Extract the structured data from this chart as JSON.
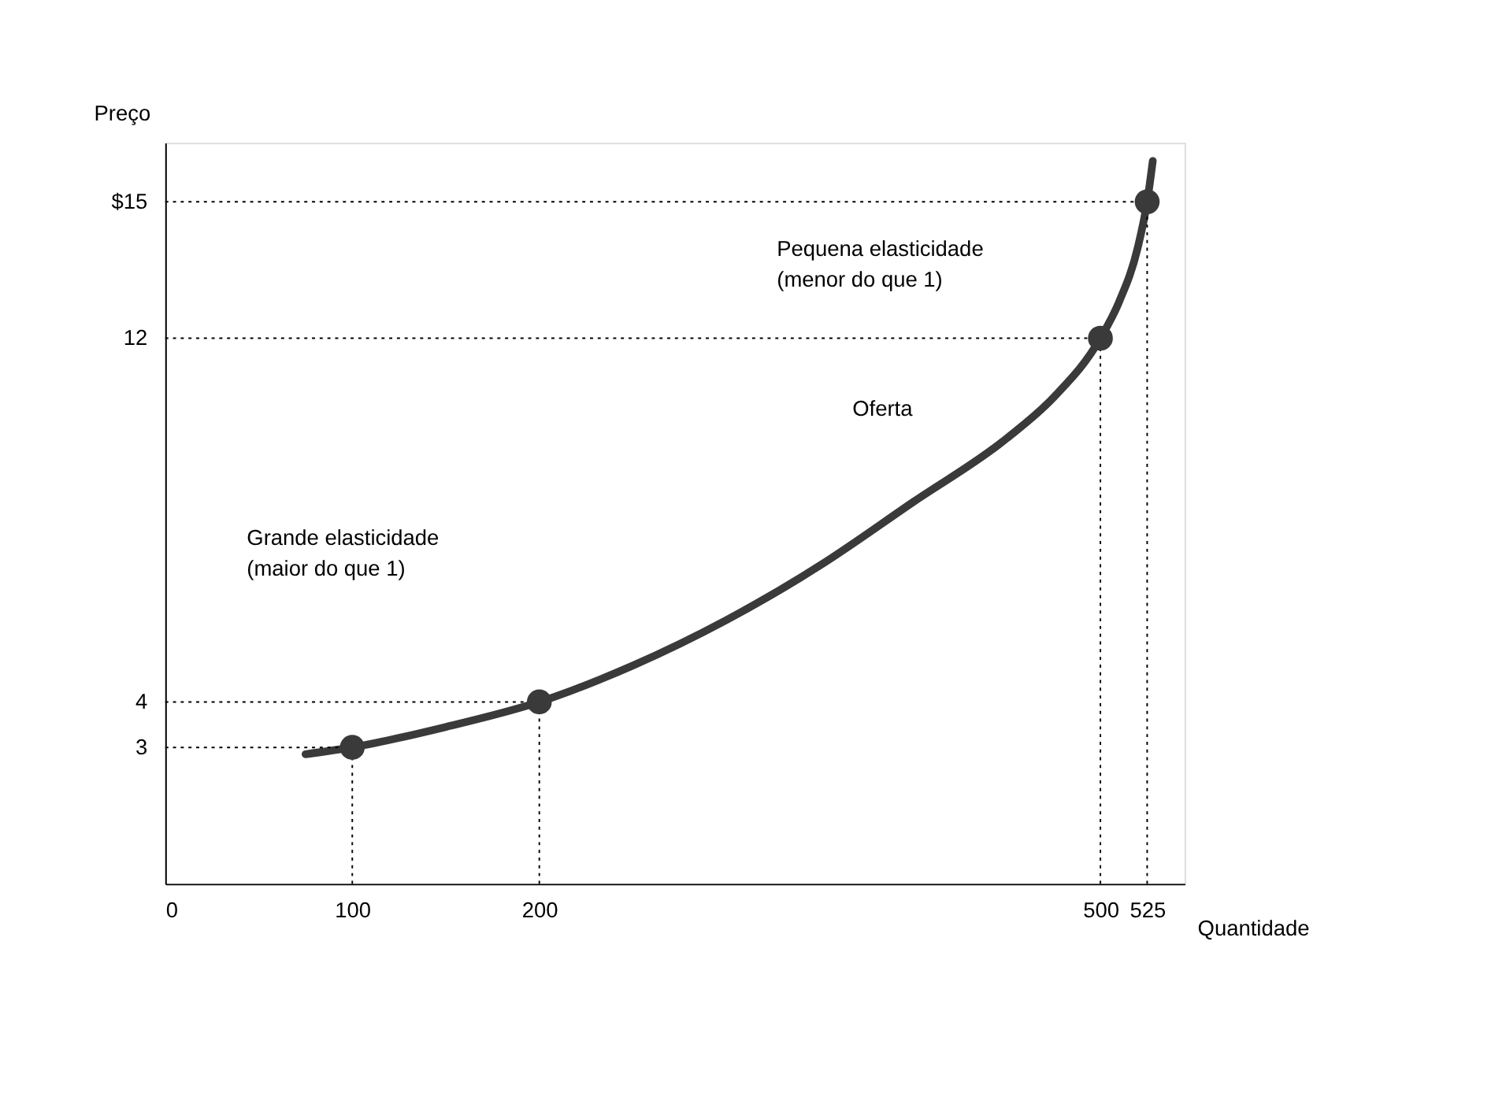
{
  "chart_data": {
    "type": "line",
    "xlabel": "Quantidade",
    "ylabel": "Preço",
    "xlim": [
      0,
      545
    ],
    "ylim": [
      0,
      16.3
    ],
    "xticks": [
      0,
      100,
      200,
      500,
      525
    ],
    "yticks": [
      3,
      4,
      12,
      {
        "value": 15,
        "label": "$15"
      }
    ],
    "ref_lines": [
      {
        "axis": "x",
        "value": 100,
        "line_style": "dotted"
      },
      {
        "axis": "x",
        "value": 200,
        "line_style": "dotted"
      },
      {
        "axis": "x",
        "value": 500,
        "line_style": "dotted"
      },
      {
        "axis": "x",
        "value": 525,
        "line_style": "dotted"
      },
      {
        "axis": "y",
        "value": 3,
        "line_style": "dotted"
      },
      {
        "axis": "y",
        "value": 4,
        "line_style": "dotted"
      },
      {
        "axis": "y",
        "value": 12,
        "line_style": "dotted"
      },
      {
        "axis": "y",
        "value": 15,
        "line_style": "dotted"
      }
    ],
    "series": [
      {
        "name": "Oferta",
        "color": "#3a3a3a",
        "x": [
          75,
          100,
          150,
          200,
          250,
          300,
          350,
          400,
          450,
          475,
          500,
          510,
          520,
          525,
          528
        ],
        "values": [
          2.85,
          3,
          3.45,
          4,
          4.8,
          5.8,
          7.0,
          8.4,
          9.8,
          10.7,
          12,
          12.8,
          14.0,
          15,
          15.9
        ]
      },
      {
        "type": "scatter",
        "marker": "circle",
        "color": "#3a3a3a",
        "x": [
          100,
          200,
          500,
          525
        ],
        "values": [
          3,
          4,
          12,
          15
        ]
      }
    ],
    "annotations": [
      "Pequena elasticidade\n(menor do que 1)",
      "Grande elasticidade\n(maior do que 1)"
    ]
  }
}
